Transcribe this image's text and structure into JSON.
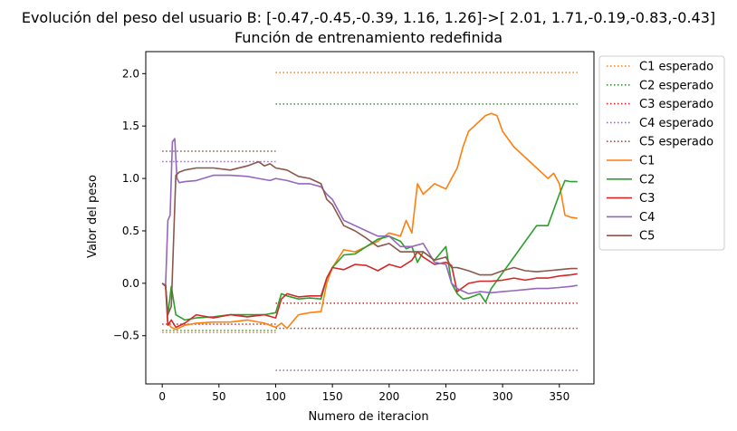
{
  "chart_data": {
    "type": "line",
    "title": "Evolución del peso del usuario B: [-0.47,-0.45,-0.39, 1.16, 1.26]->[ 2.01, 1.71,-0.19,-0.83,-0.43]",
    "subtitle": "Función de entrenamiento redefinida",
    "xlabel": "Numero de iteracion",
    "ylabel": "Valor del peso",
    "xlim": [
      -14.5,
      380.5
    ],
    "ylim": [
      -0.96,
      2.21
    ],
    "xticks": [
      0,
      50,
      100,
      150,
      200,
      250,
      300,
      350
    ],
    "yticks": [
      -0.5,
      0.0,
      0.5,
      1.0,
      1.5,
      2.0
    ],
    "ytick_labels": [
      "−0.5",
      "0.0",
      "0.5",
      "1.0",
      "1.5",
      "2.0"
    ],
    "grid": false,
    "legend_position": "outside-right-top",
    "legend": [
      "C1 esperado",
      "C2 esperado",
      "C3 esperado",
      "C4 esperado",
      "C5 esperado",
      "C1",
      "C2",
      "C3",
      "C4",
      "C5"
    ],
    "expected": [
      {
        "name": "C1 esperado",
        "color": "#ff7f0e",
        "segments": [
          {
            "x": [
              0,
              100
            ],
            "y": -0.47
          },
          {
            "x": [
              100,
              366
            ],
            "y": 2.01
          }
        ]
      },
      {
        "name": "C2 esperado",
        "color": "#2ca02c",
        "segments": [
          {
            "x": [
              0,
              100
            ],
            "y": -0.45
          },
          {
            "x": [
              100,
              366
            ],
            "y": 1.71
          }
        ]
      },
      {
        "name": "C3 esperado",
        "color": "#d62728",
        "segments": [
          {
            "x": [
              0,
              100
            ],
            "y": -0.39
          },
          {
            "x": [
              100,
              366
            ],
            "y": -0.19
          }
        ]
      },
      {
        "name": "C4 esperado",
        "color": "#9467bd",
        "segments": [
          {
            "x": [
              0,
              100
            ],
            "y": 1.16
          },
          {
            "x": [
              100,
              366
            ],
            "y": -0.83
          }
        ]
      },
      {
        "name": "C5 esperado",
        "color": "#8c564b",
        "segments": [
          {
            "x": [
              0,
              100
            ],
            "y": 1.26
          },
          {
            "x": [
              100,
              366
            ],
            "y": -0.43
          }
        ]
      }
    ],
    "series": [
      {
        "name": "C1",
        "color": "#ff7f0e",
        "x": [
          0,
          3,
          5,
          8,
          12,
          20,
          30,
          45,
          60,
          75,
          90,
          100,
          105,
          110,
          120,
          130,
          140,
          145,
          150,
          160,
          170,
          180,
          190,
          200,
          210,
          215,
          220,
          225,
          230,
          240,
          250,
          255,
          260,
          265,
          270,
          275,
          280,
          285,
          290,
          295,
          300,
          310,
          320,
          330,
          340,
          345,
          350,
          355,
          360,
          366
        ],
        "y": [
          0.0,
          -0.02,
          -0.38,
          -0.42,
          -0.44,
          -0.4,
          -0.38,
          -0.37,
          -0.37,
          -0.35,
          -0.38,
          -0.42,
          -0.38,
          -0.43,
          -0.3,
          -0.28,
          -0.27,
          0.0,
          0.15,
          0.32,
          0.3,
          0.35,
          0.4,
          0.48,
          0.45,
          0.6,
          0.48,
          0.95,
          0.85,
          0.95,
          0.9,
          1.0,
          1.1,
          1.3,
          1.45,
          1.5,
          1.55,
          1.6,
          1.62,
          1.6,
          1.45,
          1.3,
          1.2,
          1.1,
          1.0,
          1.05,
          0.95,
          0.65,
          0.63,
          0.62
        ]
      },
      {
        "name": "C2",
        "color": "#2ca02c",
        "x": [
          0,
          3,
          5,
          8,
          12,
          20,
          30,
          45,
          60,
          75,
          90,
          100,
          105,
          110,
          120,
          130,
          140,
          145,
          150,
          160,
          170,
          180,
          190,
          200,
          210,
          215,
          220,
          225,
          230,
          240,
          250,
          255,
          260,
          265,
          270,
          275,
          280,
          285,
          290,
          300,
          310,
          320,
          330,
          340,
          345,
          350,
          355,
          360,
          366
        ],
        "y": [
          0.0,
          -0.02,
          -0.3,
          -0.03,
          -0.3,
          -0.35,
          -0.33,
          -0.32,
          -0.3,
          -0.3,
          -0.3,
          -0.28,
          -0.1,
          -0.12,
          -0.15,
          -0.14,
          -0.15,
          0.05,
          0.15,
          0.27,
          0.28,
          0.35,
          0.42,
          0.45,
          0.4,
          0.33,
          0.35,
          0.2,
          0.3,
          0.22,
          0.35,
          0.0,
          -0.1,
          -0.15,
          -0.14,
          -0.12,
          -0.1,
          -0.18,
          -0.05,
          0.1,
          0.25,
          0.4,
          0.55,
          0.55,
          0.7,
          0.85,
          0.98,
          0.97,
          0.97
        ]
      },
      {
        "name": "C3",
        "color": "#d62728",
        "x": [
          0,
          3,
          5,
          8,
          12,
          20,
          30,
          45,
          60,
          75,
          90,
          100,
          105,
          110,
          120,
          130,
          140,
          145,
          150,
          160,
          170,
          180,
          190,
          200,
          210,
          220,
          225,
          230,
          240,
          250,
          255,
          260,
          270,
          280,
          290,
          300,
          310,
          320,
          330,
          340,
          350,
          360,
          366
        ],
        "y": [
          0.0,
          -0.03,
          -0.4,
          -0.35,
          -0.42,
          -0.38,
          -0.3,
          -0.33,
          -0.3,
          -0.32,
          -0.3,
          -0.33,
          -0.15,
          -0.1,
          -0.13,
          -0.12,
          -0.12,
          0.05,
          0.15,
          0.13,
          0.18,
          0.17,
          0.12,
          0.18,
          0.15,
          0.22,
          0.3,
          0.25,
          0.18,
          0.2,
          0.17,
          -0.08,
          0.0,
          0.02,
          0.02,
          0.03,
          0.05,
          0.03,
          0.05,
          0.05,
          0.07,
          0.08,
          0.09
        ]
      },
      {
        "name": "C4",
        "color": "#9467bd",
        "x": [
          0,
          3,
          5,
          7,
          9,
          11,
          13,
          15,
          20,
          30,
          45,
          60,
          75,
          85,
          95,
          100,
          110,
          120,
          130,
          140,
          145,
          150,
          160,
          170,
          180,
          190,
          200,
          210,
          220,
          230,
          240,
          250,
          255,
          260,
          270,
          280,
          290,
          300,
          310,
          320,
          330,
          340,
          350,
          360,
          366
        ],
        "y": [
          0.0,
          -0.02,
          0.6,
          0.65,
          1.35,
          1.38,
          1.0,
          0.96,
          0.97,
          0.98,
          1.03,
          1.03,
          1.02,
          1.0,
          0.98,
          1.0,
          0.98,
          0.95,
          0.95,
          0.92,
          0.85,
          0.8,
          0.6,
          0.55,
          0.5,
          0.45,
          0.45,
          0.35,
          0.35,
          0.38,
          0.2,
          0.18,
          0.0,
          -0.05,
          -0.1,
          -0.08,
          -0.09,
          -0.08,
          -0.07,
          -0.06,
          -0.05,
          -0.05,
          -0.04,
          -0.03,
          -0.02
        ]
      },
      {
        "name": "C5",
        "color": "#8c564b",
        "x": [
          0,
          3,
          5,
          8,
          12,
          15,
          20,
          30,
          45,
          60,
          75,
          85,
          90,
          95,
          100,
          110,
          120,
          130,
          140,
          145,
          150,
          160,
          170,
          180,
          190,
          200,
          210,
          220,
          230,
          240,
          250,
          255,
          260,
          270,
          280,
          290,
          300,
          310,
          320,
          330,
          340,
          350,
          360,
          366
        ],
        "y": [
          0.0,
          -0.02,
          -0.3,
          -0.22,
          1.03,
          1.06,
          1.08,
          1.1,
          1.1,
          1.08,
          1.12,
          1.16,
          1.12,
          1.14,
          1.1,
          1.08,
          1.02,
          1.0,
          0.95,
          0.8,
          0.75,
          0.55,
          0.5,
          0.43,
          0.35,
          0.38,
          0.3,
          0.3,
          0.3,
          0.22,
          0.25,
          0.15,
          0.15,
          0.12,
          0.08,
          0.08,
          0.12,
          0.15,
          0.12,
          0.11,
          0.12,
          0.13,
          0.14,
          0.14
        ]
      }
    ]
  }
}
